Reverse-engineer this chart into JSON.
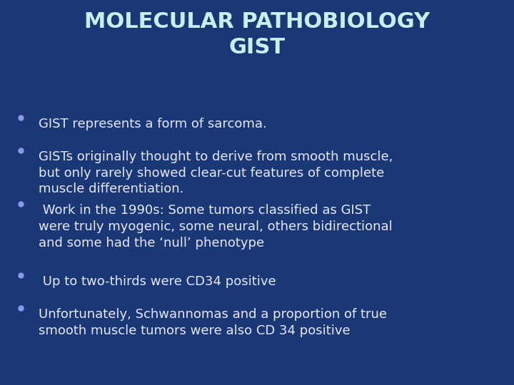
{
  "background_color": "#1a3875",
  "title_line1": "MOLECULAR PATHOBIOLOGY",
  "title_line2": "GIST",
  "title_color": "#c8f0f0",
  "title_fontsize": 22,
  "bullet_color": "#e8e8ff",
  "bullet_marker_color": "#8899ee",
  "bullet_fontsize": 13,
  "bullets": [
    "GIST represents a form of sarcoma.",
    "GISTs originally thought to derive from smooth muscle,\nbut only rarely showed clear-cut features of complete\nmuscle differentiation.",
    " Work in the 1990s: Some tumors classified as GIST\nwere truly myogenic, some neural, others bidirectional\nand some had the ‘null’ phenotype",
    " Up to two-thirds were CD34 positive",
    "Unfortunately, Schwannomas and a proportion of true\nsmooth muscle tumors were also CD 34 positive"
  ]
}
